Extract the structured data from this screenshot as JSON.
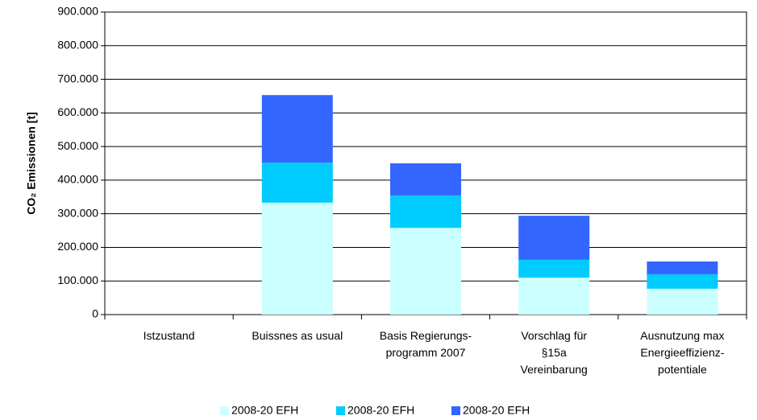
{
  "chart_data": {
    "type": "stacked_bar",
    "y_label": "CO₂ Emissionen [t]",
    "categories": [
      [
        "Istzustand"
      ],
      [
        "Buissnes as usual"
      ],
      [
        "Basis Regierungs-",
        "programm 2007"
      ],
      [
        "Vorschlag für",
        "§15a",
        "Vereinbarung"
      ],
      [
        "Ausnutzung max",
        "Energieeffizienz-",
        "potentiale"
      ]
    ],
    "series": [
      {
        "name": "2008-20 EFH",
        "color": "#ccffff",
        "values": [
          0,
          333000,
          258000,
          110000,
          77000
        ]
      },
      {
        "name": "2008-20 EFH",
        "color": "#00ccff",
        "values": [
          0,
          119000,
          96000,
          53000,
          43000
        ]
      },
      {
        "name": "2008-20 EFH",
        "color": "#3366ff",
        "values": [
          0,
          201000,
          96000,
          131000,
          38000
        ]
      }
    ],
    "ylim": [
      0,
      900000
    ],
    "yticks": [
      0,
      {
        "value": 100000,
        "label": "100.000"
      },
      {
        "value": 200000,
        "label": "200.000"
      },
      {
        "value": 300000,
        "label": "300.000"
      },
      {
        "value": 400000,
        "label": "400.000"
      },
      {
        "value": 500000,
        "label": "500.000"
      },
      {
        "value": 600000,
        "label": "600.000"
      },
      {
        "value": 700000,
        "label": "700.000"
      },
      {
        "value": 800000,
        "label": "800.000"
      },
      {
        "value": 900000,
        "label": "900.000"
      }
    ],
    "grid": true,
    "legend": "bottom"
  }
}
